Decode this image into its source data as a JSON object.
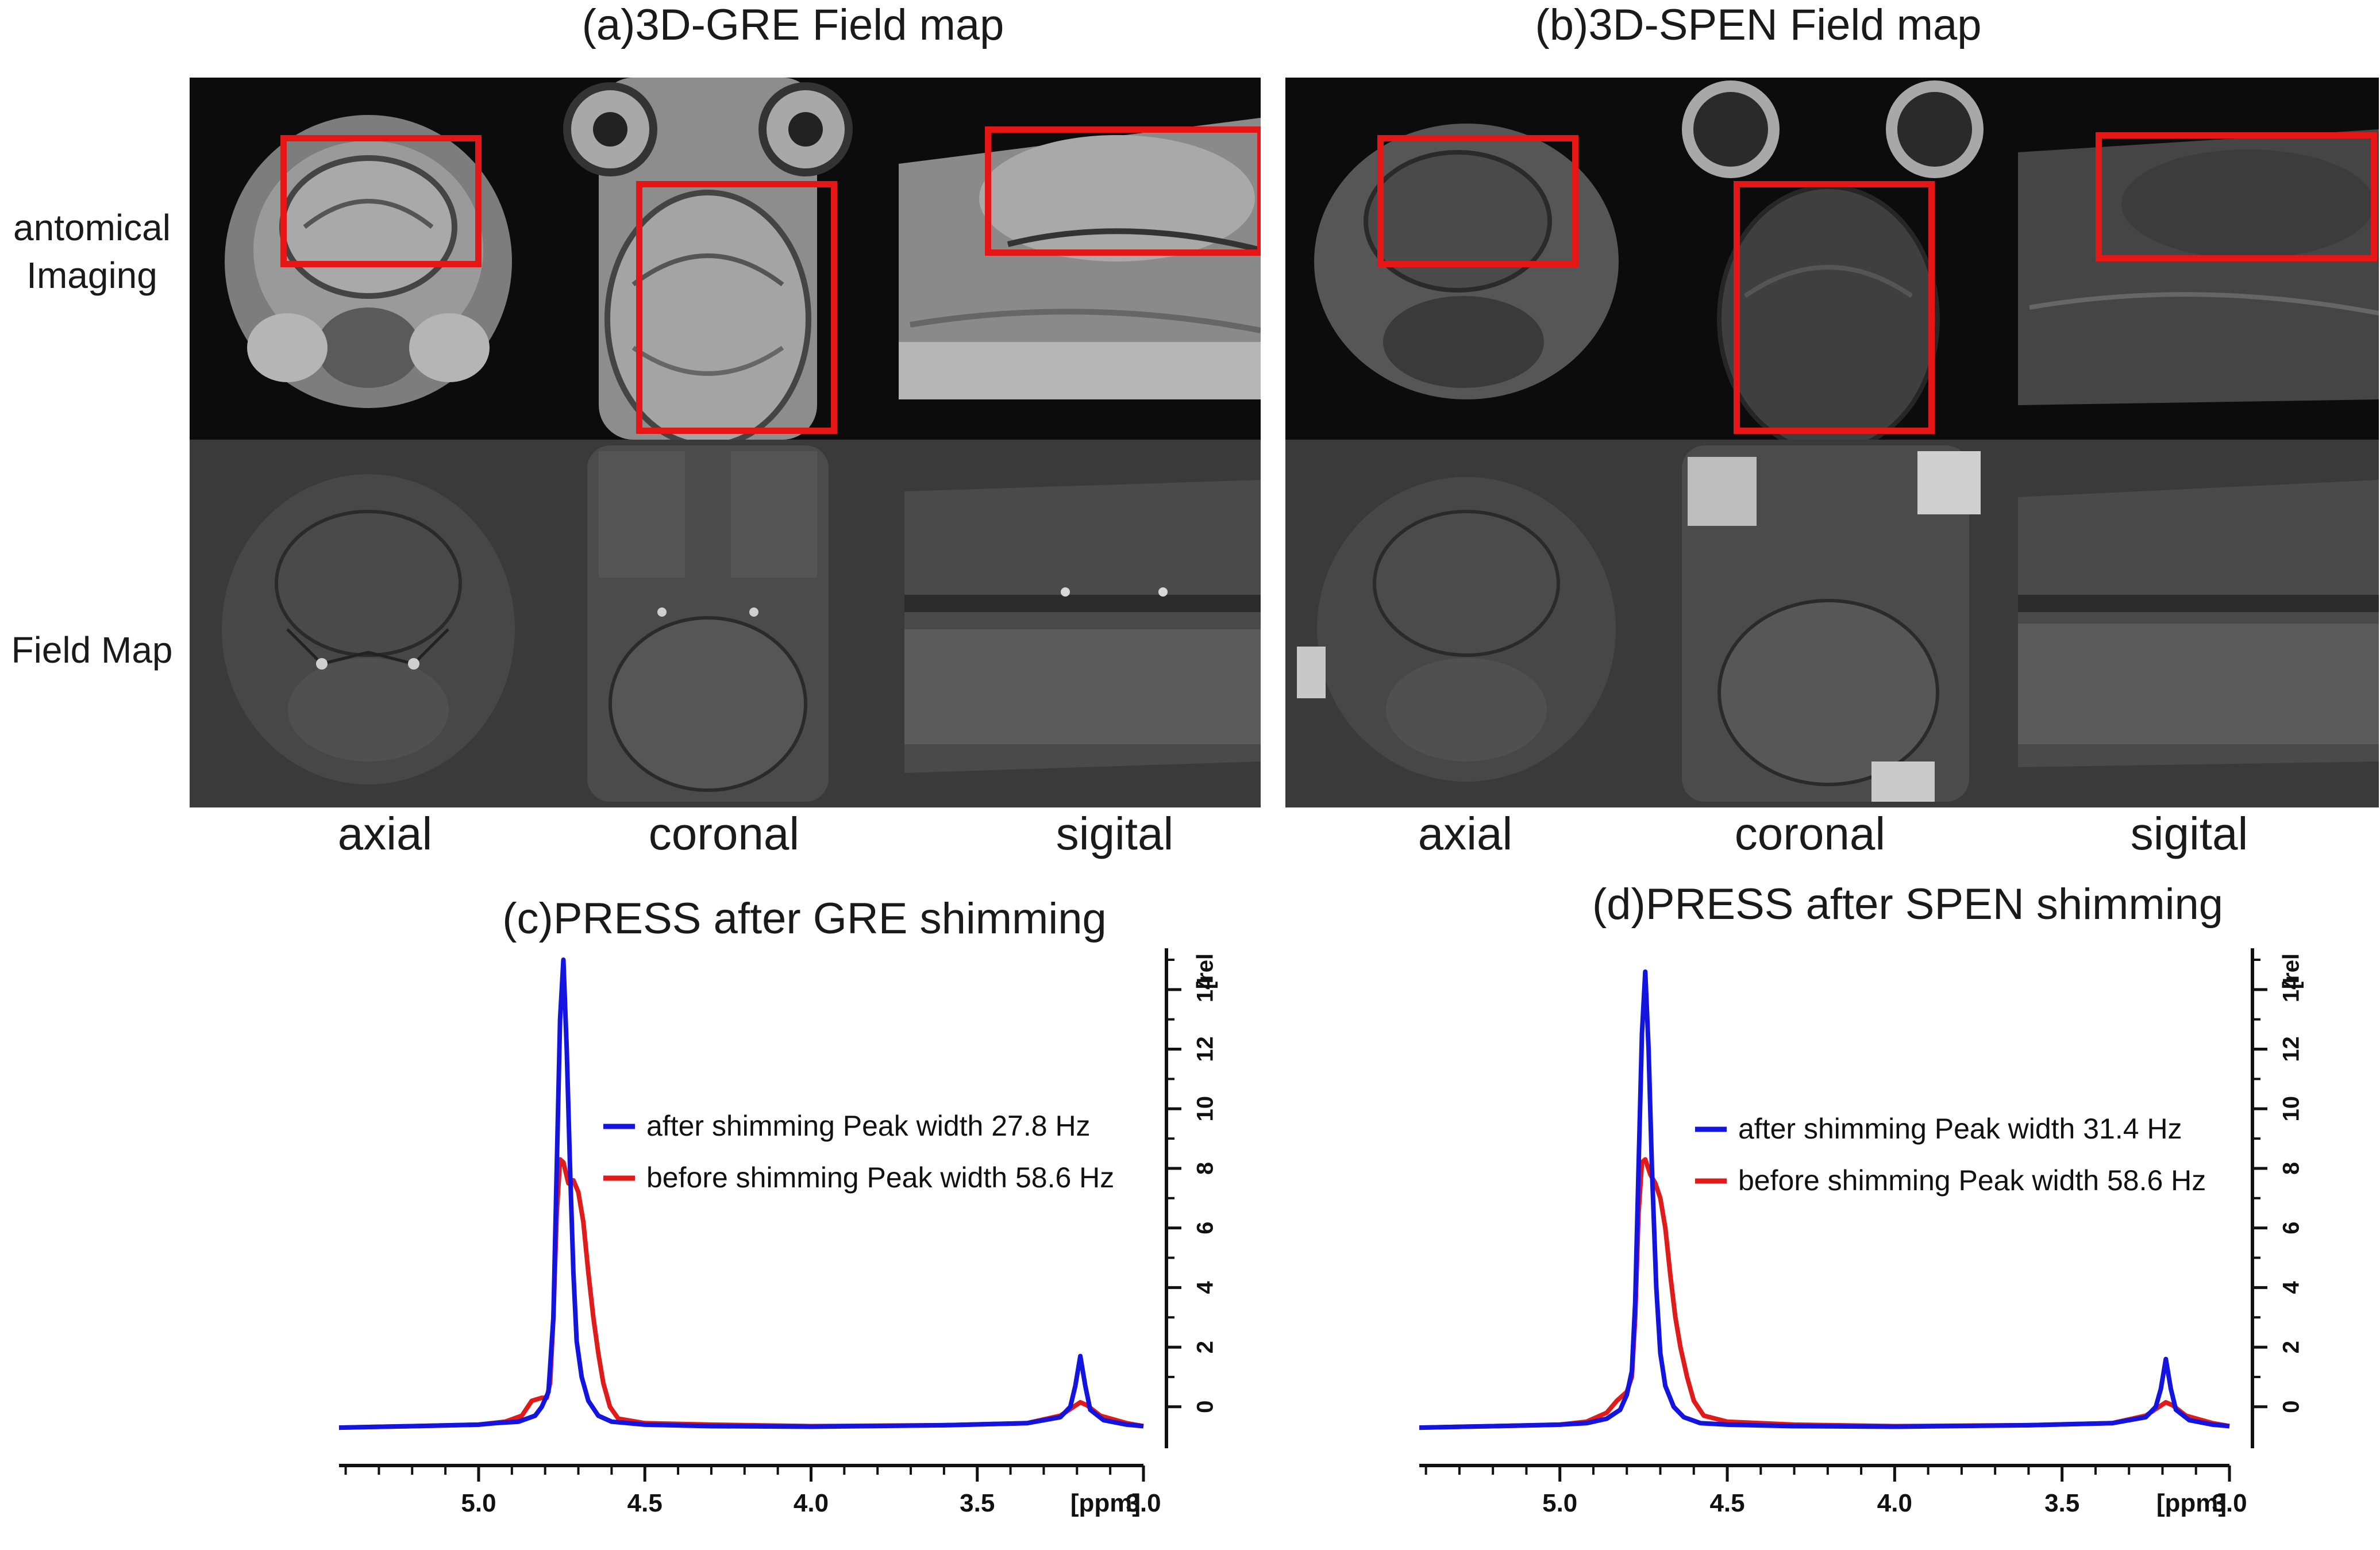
{
  "figure": {
    "panel_a": {
      "title": "(a)3D-GRE Field map",
      "images": [
        {
          "view": "axial",
          "kind": "anatomical"
        },
        {
          "view": "coronal",
          "kind": "anatomical"
        },
        {
          "view": "sigital",
          "kind": "anatomical"
        },
        {
          "view": "axial",
          "kind": "field map"
        },
        {
          "view": "coronal",
          "kind": "field map"
        },
        {
          "view": "sigital",
          "kind": "field map"
        }
      ]
    },
    "panel_b": {
      "title": "(b)3D-SPEN Field map"
    },
    "row_labels": {
      "anatomical": "antomical\nImaging",
      "fieldmap": "Field Map"
    },
    "col_labels": [
      "axial",
      "coronal",
      "sigital"
    ],
    "roi_color": "#e41616"
  },
  "chart_data": [
    {
      "type": "line",
      "title": "(c)PRESS after GRE shimming",
      "xlabel": "[ppm]",
      "ylabel": "[rel",
      "x_reversed": true,
      "xlim": [
        5.42,
        3.0
      ],
      "ylim": [
        -1.2,
        15
      ],
      "xticks": [
        5.0,
        4.5,
        4.0,
        3.5,
        3.0
      ],
      "xtick_labels": [
        "5.0",
        "4.5",
        "4.0",
        "3.5",
        "3.0"
      ],
      "yticks": [
        0,
        2,
        4,
        6,
        8,
        10,
        12,
        14
      ],
      "ytick_labels": [
        "0",
        "2",
        "4",
        "6",
        "8",
        "10",
        "12",
        "14"
      ],
      "series": [
        {
          "name": "after shimming",
          "legend": "after shimming Peak width 27.8 Hz",
          "color": "#1414e0",
          "points": [
            [
              5.42,
              -0.7
            ],
            [
              5.2,
              -0.65
            ],
            [
              5.0,
              -0.6
            ],
            [
              4.95,
              -0.55
            ],
            [
              4.88,
              -0.5
            ],
            [
              4.83,
              -0.3
            ],
            [
              4.81,
              0.0
            ],
            [
              4.79,
              0.5
            ],
            [
              4.775,
              3.0
            ],
            [
              4.765,
              8.0
            ],
            [
              4.755,
              13.0
            ],
            [
              4.745,
              15.0
            ],
            [
              4.735,
              12.0
            ],
            [
              4.725,
              8.0
            ],
            [
              4.715,
              4.5
            ],
            [
              4.705,
              2.2
            ],
            [
              4.69,
              1.0
            ],
            [
              4.67,
              0.2
            ],
            [
              4.64,
              -0.3
            ],
            [
              4.6,
              -0.5
            ],
            [
              4.5,
              -0.6
            ],
            [
              4.3,
              -0.65
            ],
            [
              4.0,
              -0.67
            ],
            [
              3.6,
              -0.62
            ],
            [
              3.35,
              -0.55
            ],
            [
              3.25,
              -0.35
            ],
            [
              3.22,
              0.0
            ],
            [
              3.205,
              0.7
            ],
            [
              3.19,
              1.7
            ],
            [
              3.175,
              0.7
            ],
            [
              3.16,
              -0.1
            ],
            [
              3.12,
              -0.45
            ],
            [
              3.05,
              -0.6
            ],
            [
              3.0,
              -0.65
            ]
          ]
        },
        {
          "name": "before shimming",
          "legend": "before shimming Peak width 58.6 Hz",
          "color": "#e01b1b",
          "points": [
            [
              5.42,
              -0.7
            ],
            [
              5.2,
              -0.65
            ],
            [
              5.0,
              -0.6
            ],
            [
              4.92,
              -0.5
            ],
            [
              4.87,
              -0.3
            ],
            [
              4.84,
              0.2
            ],
            [
              4.81,
              0.3
            ],
            [
              4.795,
              0.3
            ],
            [
              4.785,
              0.8
            ],
            [
              4.775,
              3.0
            ],
            [
              4.765,
              6.5
            ],
            [
              4.755,
              8.3
            ],
            [
              4.745,
              8.2
            ],
            [
              4.73,
              7.5
            ],
            [
              4.715,
              7.6
            ],
            [
              4.7,
              7.2
            ],
            [
              4.685,
              6.2
            ],
            [
              4.67,
              4.5
            ],
            [
              4.655,
              3.0
            ],
            [
              4.64,
              1.8
            ],
            [
              4.625,
              0.8
            ],
            [
              4.605,
              0.0
            ],
            [
              4.58,
              -0.4
            ],
            [
              4.5,
              -0.55
            ],
            [
              4.3,
              -0.6
            ],
            [
              4.0,
              -0.65
            ],
            [
              3.6,
              -0.62
            ],
            [
              3.35,
              -0.55
            ],
            [
              3.25,
              -0.3
            ],
            [
              3.21,
              0.0
            ],
            [
              3.19,
              0.15
            ],
            [
              3.17,
              0.05
            ],
            [
              3.13,
              -0.3
            ],
            [
              3.05,
              -0.55
            ],
            [
              3.0,
              -0.65
            ]
          ]
        }
      ]
    },
    {
      "type": "line",
      "title": "(d)PRESS after SPEN shimming",
      "xlabel": "[ppm]",
      "ylabel": "[rel",
      "x_reversed": true,
      "xlim": [
        5.42,
        3.0
      ],
      "ylim": [
        -1.2,
        15
      ],
      "xticks": [
        5.0,
        4.5,
        4.0,
        3.5,
        3.0
      ],
      "xtick_labels": [
        "5.0",
        "4.5",
        "4.0",
        "3.5",
        "3.0"
      ],
      "yticks": [
        0,
        2,
        4,
        6,
        8,
        10,
        12,
        14
      ],
      "ytick_labels": [
        "0",
        "2",
        "4",
        "6",
        "8",
        "10",
        "12",
        "14"
      ],
      "series": [
        {
          "name": "after shimming",
          "legend": "after shimming Peak width 31.4 Hz",
          "color": "#1414e0",
          "points": [
            [
              5.42,
              -0.7
            ],
            [
              5.2,
              -0.65
            ],
            [
              5.0,
              -0.6
            ],
            [
              4.92,
              -0.55
            ],
            [
              4.86,
              -0.4
            ],
            [
              4.82,
              -0.1
            ],
            [
              4.8,
              0.4
            ],
            [
              4.785,
              1.2
            ],
            [
              4.775,
              3.5
            ],
            [
              4.765,
              8.0
            ],
            [
              4.755,
              12.5
            ],
            [
              4.745,
              14.6
            ],
            [
              4.735,
              12.0
            ],
            [
              4.725,
              8.0
            ],
            [
              4.712,
              4.0
            ],
            [
              4.7,
              1.8
            ],
            [
              4.685,
              0.7
            ],
            [
              4.66,
              0.0
            ],
            [
              4.63,
              -0.35
            ],
            [
              4.58,
              -0.55
            ],
            [
              4.5,
              -0.6
            ],
            [
              4.3,
              -0.65
            ],
            [
              4.0,
              -0.67
            ],
            [
              3.6,
              -0.62
            ],
            [
              3.35,
              -0.55
            ],
            [
              3.25,
              -0.35
            ],
            [
              3.22,
              0.0
            ],
            [
              3.205,
              0.6
            ],
            [
              3.19,
              1.6
            ],
            [
              3.175,
              0.6
            ],
            [
              3.16,
              -0.1
            ],
            [
              3.12,
              -0.45
            ],
            [
              3.05,
              -0.6
            ],
            [
              3.0,
              -0.65
            ]
          ]
        },
        {
          "name": "before shimming",
          "legend": "before shimming Peak width 58.6 Hz",
          "color": "#e01b1b",
          "points": [
            [
              5.42,
              -0.7
            ],
            [
              5.2,
              -0.65
            ],
            [
              5.0,
              -0.6
            ],
            [
              4.92,
              -0.5
            ],
            [
              4.86,
              -0.2
            ],
            [
              4.83,
              0.2
            ],
            [
              4.8,
              0.5
            ],
            [
              4.785,
              1.0
            ],
            [
              4.775,
              3.0
            ],
            [
              4.765,
              6.5
            ],
            [
              4.755,
              8.2
            ],
            [
              4.745,
              8.3
            ],
            [
              4.73,
              7.8
            ],
            [
              4.715,
              7.5
            ],
            [
              4.7,
              7.0
            ],
            [
              4.685,
              6.0
            ],
            [
              4.67,
              4.4
            ],
            [
              4.655,
              3.0
            ],
            [
              4.64,
              2.0
            ],
            [
              4.62,
              1.0
            ],
            [
              4.6,
              0.2
            ],
            [
              4.57,
              -0.3
            ],
            [
              4.5,
              -0.5
            ],
            [
              4.3,
              -0.6
            ],
            [
              4.0,
              -0.65
            ],
            [
              3.6,
              -0.62
            ],
            [
              3.35,
              -0.55
            ],
            [
              3.25,
              -0.3
            ],
            [
              3.21,
              0.0
            ],
            [
              3.19,
              0.15
            ],
            [
              3.17,
              0.05
            ],
            [
              3.13,
              -0.3
            ],
            [
              3.05,
              -0.55
            ],
            [
              3.0,
              -0.65
            ]
          ]
        }
      ]
    }
  ]
}
